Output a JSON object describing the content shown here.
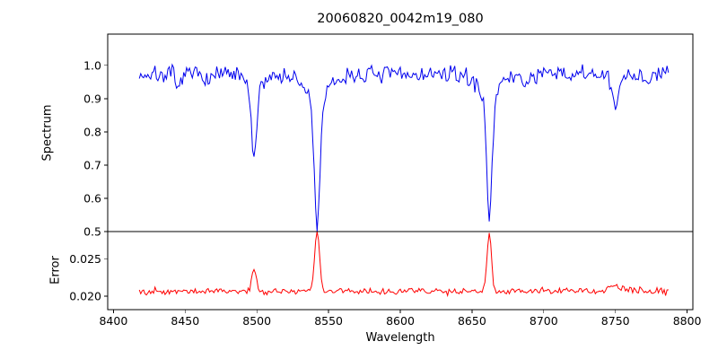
{
  "chart_data": {
    "type": "line",
    "title": "20060820_0042m19_080",
    "xlabel": "Wavelength",
    "xlim": [
      8396,
      8804
    ],
    "x_range": [
      8418,
      8787
    ],
    "x_step": 1,
    "x_ticks": [
      8400,
      8450,
      8500,
      8550,
      8600,
      8650,
      8700,
      8750,
      8800
    ],
    "x_ticklabels": [
      "8400",
      "8450",
      "8500",
      "8550",
      "8600",
      "8650",
      "8700",
      "8750",
      "8800"
    ],
    "noise_seed": 7,
    "grid": false,
    "legend": "none",
    "subplots": [
      {
        "ylabel": "Spectrum",
        "color": "#0000ee",
        "ylim": [
          0.5,
          1.094
        ],
        "y_ticks": [
          0.5,
          0.6,
          0.7,
          0.8,
          0.9,
          1.0
        ],
        "y_ticklabels": [
          "0.5",
          "0.6",
          "0.7",
          "0.8",
          "0.9",
          "1.0"
        ],
        "series": {
          "mode": "absorption",
          "baseline": 0.972,
          "noise_sigma": 0.013,
          "features": [
            {
              "center": 8445,
              "amplitude": 0.055,
              "width": 1.4
            },
            {
              "center": 8467,
              "amplitude": 0.025,
              "width": 1.2
            },
            {
              "center": 8498,
              "amplitude": 0.235,
              "width": 1.7
            },
            {
              "center": 8498,
              "amplitude": 0.035,
              "width": 6
            },
            {
              "center": 8542,
              "amplitude": 0.38,
              "width": 2.0
            },
            {
              "center": 8542,
              "amplitude": 0.07,
              "width": 9
            },
            {
              "center": 8662,
              "amplitude": 0.355,
              "width": 1.9
            },
            {
              "center": 8662,
              "amplitude": 0.06,
              "width": 8
            },
            {
              "center": 8688,
              "amplitude": 0.03,
              "width": 2.0
            },
            {
              "center": 8750,
              "amplitude": 0.1,
              "width": 2.5
            },
            {
              "center": 8773,
              "amplitude": 0.03,
              "width": 1.5
            }
          ]
        },
        "read_values": {
          "continuum_level": 0.97,
          "absorption_line_minima": [
            {
              "wavelength": 8498,
              "flux": 0.7
            },
            {
              "wavelength": 8542,
              "flux": 0.52
            },
            {
              "wavelength": 8662,
              "flux": 0.54
            }
          ]
        }
      },
      {
        "ylabel": "Error",
        "color": "#ff0000",
        "ylim": [
          0.0182,
          0.0287
        ],
        "y_ticks": [
          0.02,
          0.025
        ],
        "y_ticklabels": [
          "0.020",
          "0.025"
        ],
        "series": {
          "mode": "emission",
          "baseline": 0.0207,
          "noise_sigma": 0.00022,
          "features": [
            {
              "center": 8498,
              "amplitude": 0.003,
              "width": 1.5
            },
            {
              "center": 8542,
              "amplitude": 0.008,
              "width": 1.7
            },
            {
              "center": 8662,
              "amplitude": 0.0076,
              "width": 1.6
            },
            {
              "center": 8750,
              "amplitude": 0.0007,
              "width": 4
            }
          ]
        },
        "read_values": {
          "baseline_level": 0.0207,
          "error_peaks": [
            {
              "wavelength": 8498,
              "value": 0.024
            },
            {
              "wavelength": 8542,
              "value": 0.029
            },
            {
              "wavelength": 8662,
              "value": 0.028
            }
          ]
        }
      }
    ]
  }
}
